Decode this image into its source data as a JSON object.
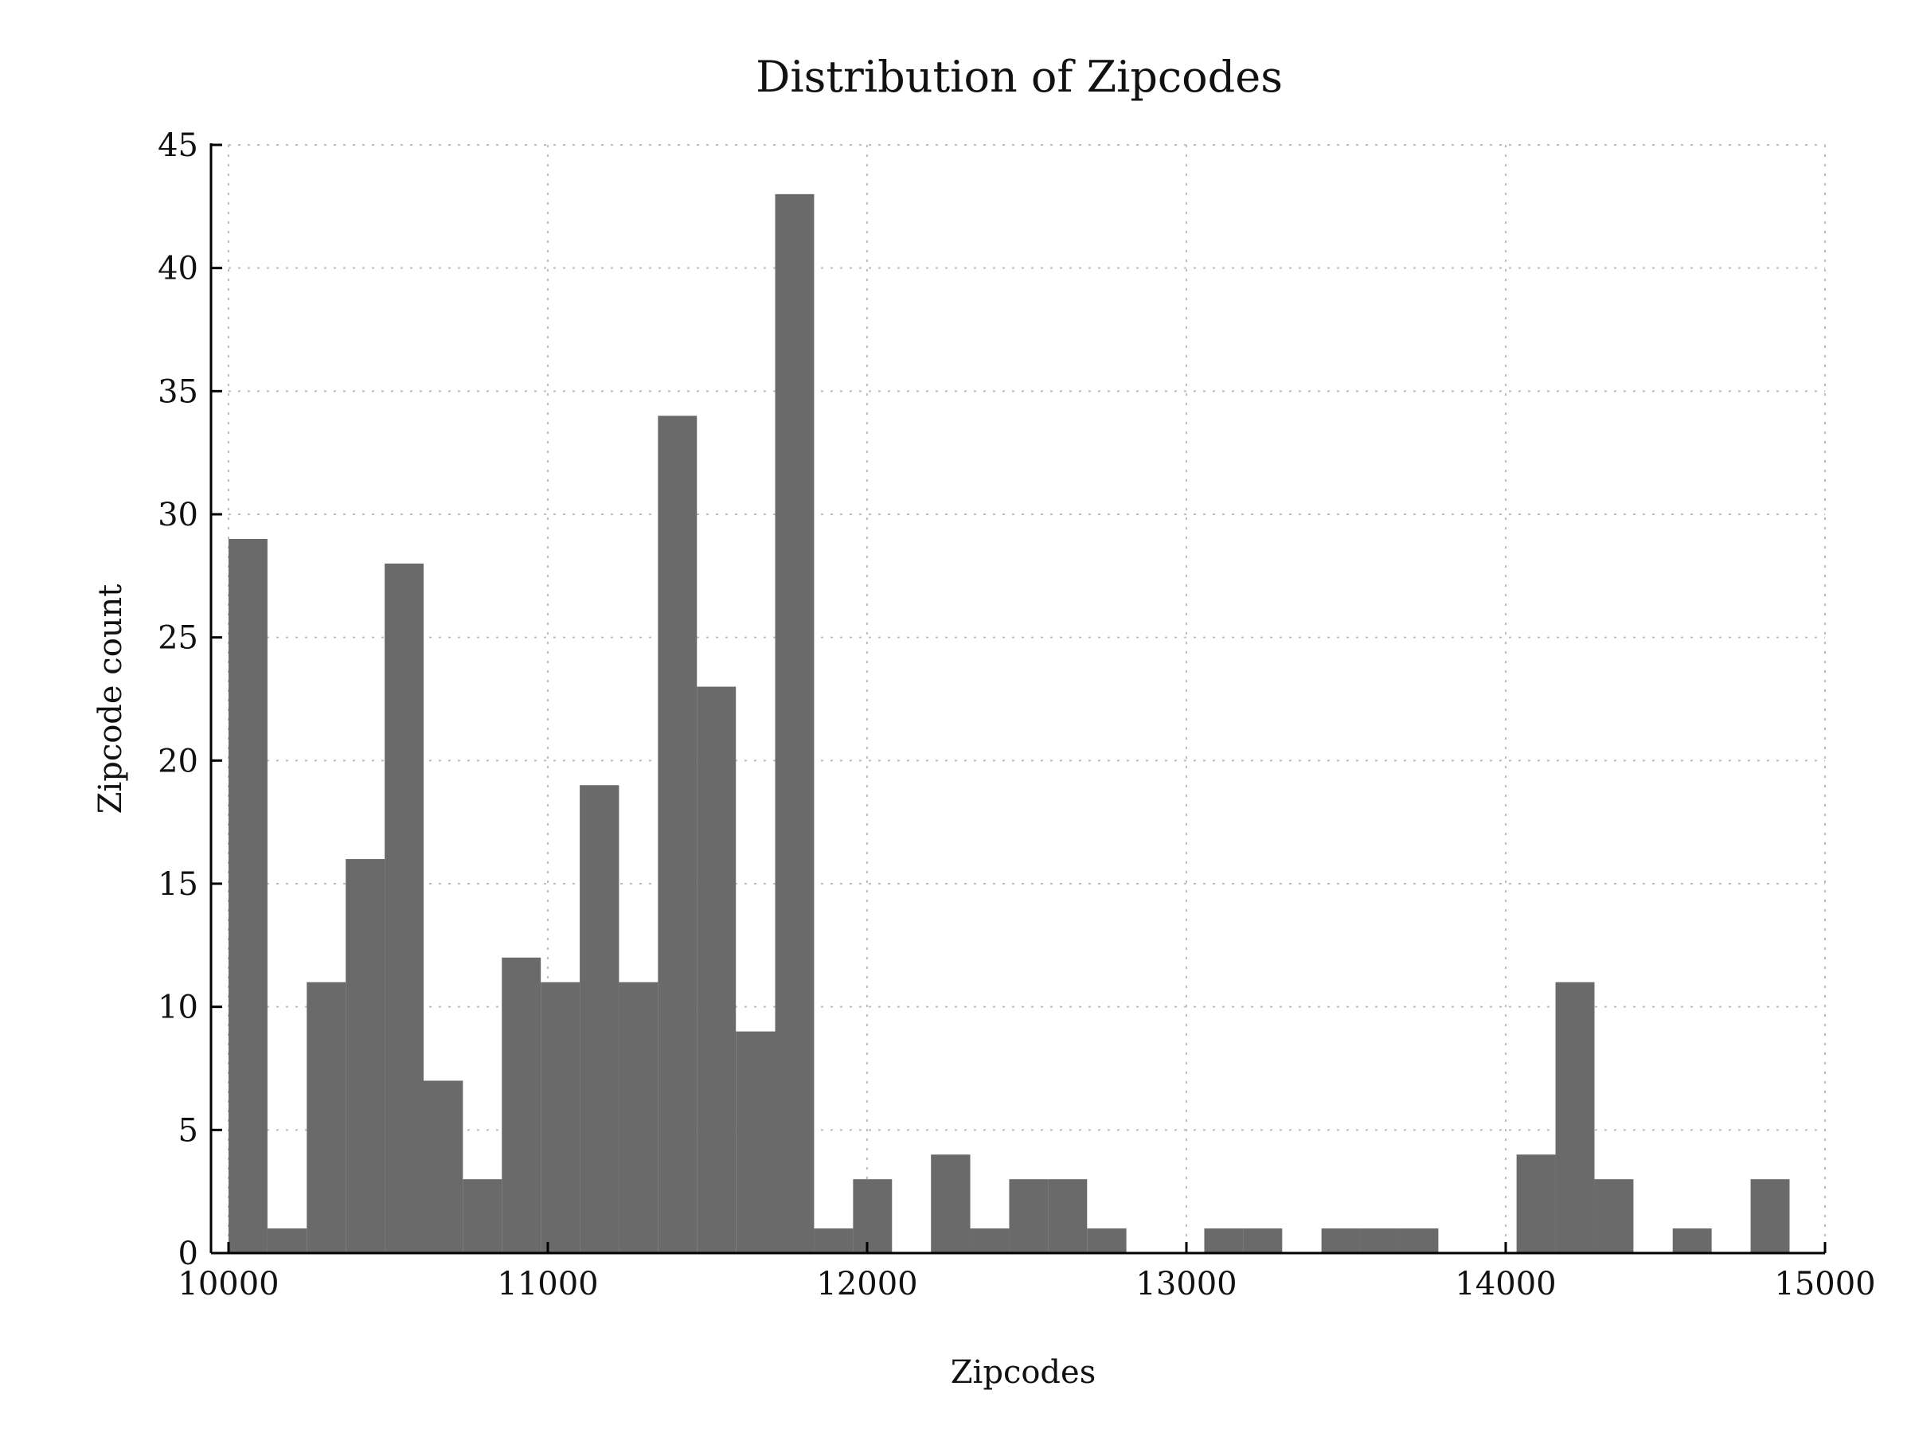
{
  "chart_data": {
    "type": "bar",
    "title": "Distribution of Zipcodes",
    "xlabel": "Zipcodes",
    "ylabel": "Zipcode count",
    "xlim": [
      10000,
      15000
    ],
    "ylim": [
      0,
      45
    ],
    "x_ticks": [
      "10000",
      "11000",
      "12000",
      "13000",
      "14000",
      "15000"
    ],
    "y_ticks": [
      "0",
      "5",
      "10",
      "15",
      "20",
      "25",
      "30",
      "35",
      "40",
      "45"
    ],
    "grid": true,
    "bar_color": "#6a6a6a",
    "bins": [
      {
        "start": 10000,
        "end": 10122,
        "value": 29
      },
      {
        "start": 10122,
        "end": 10245,
        "value": 1
      },
      {
        "start": 10245,
        "end": 10367,
        "value": 11
      },
      {
        "start": 10367,
        "end": 10489,
        "value": 16
      },
      {
        "start": 10489,
        "end": 10611,
        "value": 28
      },
      {
        "start": 10611,
        "end": 10734,
        "value": 7
      },
      {
        "start": 10734,
        "end": 10856,
        "value": 3
      },
      {
        "start": 10856,
        "end": 10978,
        "value": 12
      },
      {
        "start": 10978,
        "end": 11100,
        "value": 11
      },
      {
        "start": 11100,
        "end": 11223,
        "value": 19
      },
      {
        "start": 11223,
        "end": 11345,
        "value": 11
      },
      {
        "start": 11345,
        "end": 11467,
        "value": 34
      },
      {
        "start": 11467,
        "end": 11589,
        "value": 23
      },
      {
        "start": 11589,
        "end": 11712,
        "value": 9
      },
      {
        "start": 11712,
        "end": 11834,
        "value": 43
      },
      {
        "start": 11834,
        "end": 11956,
        "value": 1
      },
      {
        "start": 11956,
        "end": 12078,
        "value": 3
      },
      {
        "start": 12200,
        "end": 12323,
        "value": 4
      },
      {
        "start": 12323,
        "end": 12445,
        "value": 1
      },
      {
        "start": 12445,
        "end": 12567,
        "value": 3
      },
      {
        "start": 12567,
        "end": 12689,
        "value": 3
      },
      {
        "start": 12689,
        "end": 12812,
        "value": 1
      },
      {
        "start": 13056,
        "end": 13178,
        "value": 1
      },
      {
        "start": 13178,
        "end": 13300,
        "value": 1
      },
      {
        "start": 13423,
        "end": 13545,
        "value": 1
      },
      {
        "start": 13545,
        "end": 13667,
        "value": 1
      },
      {
        "start": 13667,
        "end": 13789,
        "value": 1
      },
      {
        "start": 14034,
        "end": 14156,
        "value": 4
      },
      {
        "start": 14156,
        "end": 14278,
        "value": 11
      },
      {
        "start": 14278,
        "end": 14400,
        "value": 3
      },
      {
        "start": 14523,
        "end": 14645,
        "value": 1
      },
      {
        "start": 14767,
        "end": 14889,
        "value": 3
      }
    ]
  }
}
